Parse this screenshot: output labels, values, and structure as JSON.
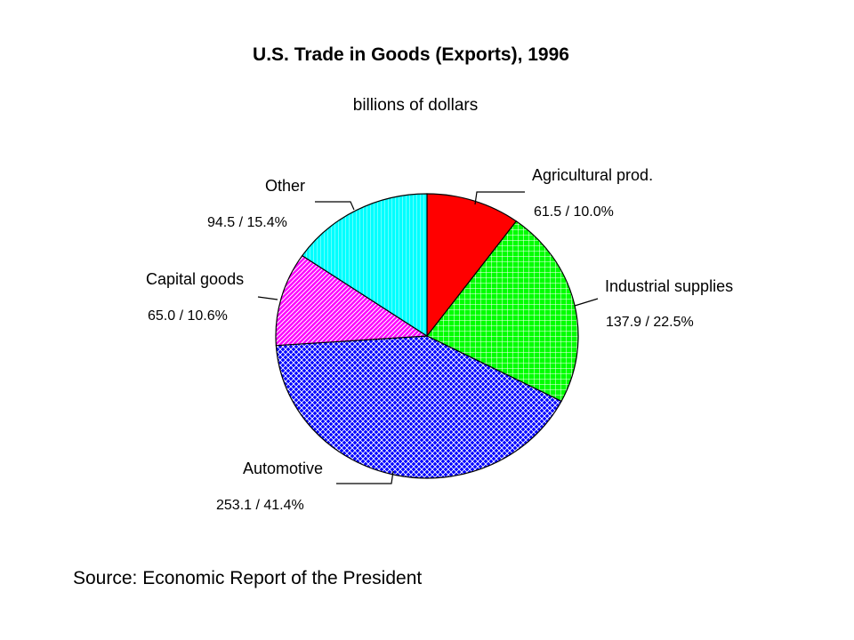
{
  "chart_data": {
    "type": "pie",
    "title": "U.S. Trade in Goods (Exports), 1996",
    "subtitle": "billions of dollars",
    "slices": [
      {
        "label": "Agricultural prod.",
        "value": 61.5,
        "percent": 10.0,
        "value_text": "61.5 / 10.0%",
        "color": "#ff0000",
        "pattern": "solid"
      },
      {
        "label": "Industrial supplies",
        "value": 137.9,
        "percent": 22.5,
        "value_text": "137.9 / 22.5%",
        "color": "#00ff00",
        "pattern": "grid"
      },
      {
        "label": "Automotive",
        "value": 253.1,
        "percent": 41.4,
        "value_text": "253.1 / 41.4%",
        "color": "#0000ff",
        "pattern": "crosshatch"
      },
      {
        "label": "Capital goods",
        "value": 65.0,
        "percent": 10.6,
        "value_text": "65.0 / 10.6%",
        "color": "#ff00ff",
        "pattern": "diagonal"
      },
      {
        "label": "Other",
        "value": 94.5,
        "percent": 15.4,
        "value_text": "94.5 / 15.4%",
        "color": "#00ffff",
        "pattern": "vertical"
      }
    ],
    "start_angle_deg": 0,
    "direction": "clockwise"
  },
  "footer": {
    "source": "Source: Economic Report of the President"
  }
}
